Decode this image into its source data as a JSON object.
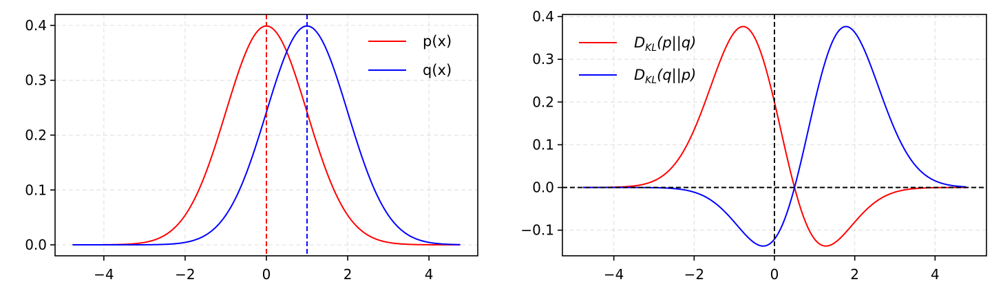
{
  "chart_data": [
    {
      "type": "line",
      "title": "",
      "xlabel": "",
      "ylabel": "",
      "xlim": [
        -5.2,
        5.2
      ],
      "ylim": [
        -0.02,
        0.42
      ],
      "xticks": [
        -4,
        -2,
        0,
        2,
        4
      ],
      "xtick_labels": [
        "−4",
        "−2",
        "0",
        "2",
        "4"
      ],
      "yticks": [
        0.0,
        0.1,
        0.2,
        0.3,
        0.4
      ],
      "ytick_labels": [
        "0.0",
        "0.1",
        "0.2",
        "0.3",
        "0.4"
      ],
      "grid": true,
      "legend_position": "upper right",
      "x_range": [
        -4.77,
        4.77
      ],
      "series": [
        {
          "name": "p(x)",
          "mean": 0,
          "std": 1,
          "color": "#ff0000",
          "formula": "N(x; 0, 1)"
        },
        {
          "name": "q(x)",
          "mean": 1,
          "std": 1,
          "color": "#0000ff",
          "formula": "N(x; 1, 1)"
        }
      ],
      "reference_lines": [
        {
          "orientation": "vertical",
          "x": 0,
          "color": "#ff0000",
          "style": "dashed"
        },
        {
          "orientation": "vertical",
          "x": 1,
          "color": "#0000ff",
          "style": "dashed"
        }
      ]
    },
    {
      "type": "line",
      "title": "",
      "xlabel": "",
      "ylabel": "",
      "xlim": [
        -5.28,
        5.28
      ],
      "ylim": [
        -0.16,
        0.405
      ],
      "xticks": [
        -4,
        -2,
        0,
        2,
        4
      ],
      "xtick_labels": [
        "−4",
        "−2",
        "0",
        "2",
        "4"
      ],
      "yticks": [
        -0.1,
        0.0,
        0.1,
        0.2,
        0.3,
        0.4
      ],
      "ytick_labels": [
        "−0.1",
        "0.0",
        "0.1",
        "0.2",
        "0.3",
        "0.4"
      ],
      "grid": true,
      "legend_position": "upper left",
      "x_range": [
        -4.77,
        4.77
      ],
      "series": [
        {
          "name": "D_KL(p||q)",
          "legend": {
            "base": "D",
            "sub": "KL",
            "args": "(p||q)"
          },
          "color": "#ff0000",
          "formula": "p(x) * ln(p(x)/q(x))"
        },
        {
          "name": "D_KL(q||p)",
          "legend": {
            "base": "D",
            "sub": "KL",
            "args": "(q||p)"
          },
          "color": "#0000ff",
          "formula": "q(x) * ln(q(x)/p(x))"
        }
      ],
      "reference_lines": [
        {
          "orientation": "horizontal",
          "y": 0,
          "color": "#000000",
          "style": "dashed"
        },
        {
          "orientation": "vertical",
          "x": 0,
          "color": "#000000",
          "style": "dashed"
        }
      ]
    }
  ]
}
